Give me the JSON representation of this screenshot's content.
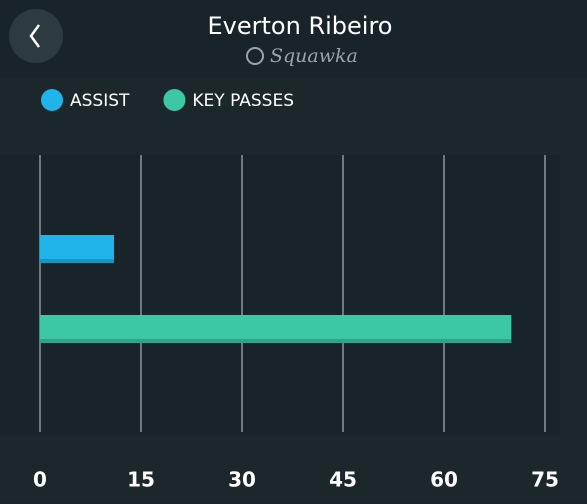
{
  "chart_data": {
    "type": "bar",
    "orientation": "horizontal",
    "title": "Everton Ribeiro",
    "subtitle": "Squawka",
    "series": [
      {
        "name": "ASSIST",
        "color": "#1fb5ea",
        "values": [
          11
        ]
      },
      {
        "name": "KEY PASSES",
        "color": "#3cc8a4",
        "values": [
          70
        ]
      }
    ],
    "xlim": [
      0,
      75
    ],
    "xticks": [
      0,
      15,
      30,
      45,
      60,
      75
    ],
    "grid": true
  }
}
